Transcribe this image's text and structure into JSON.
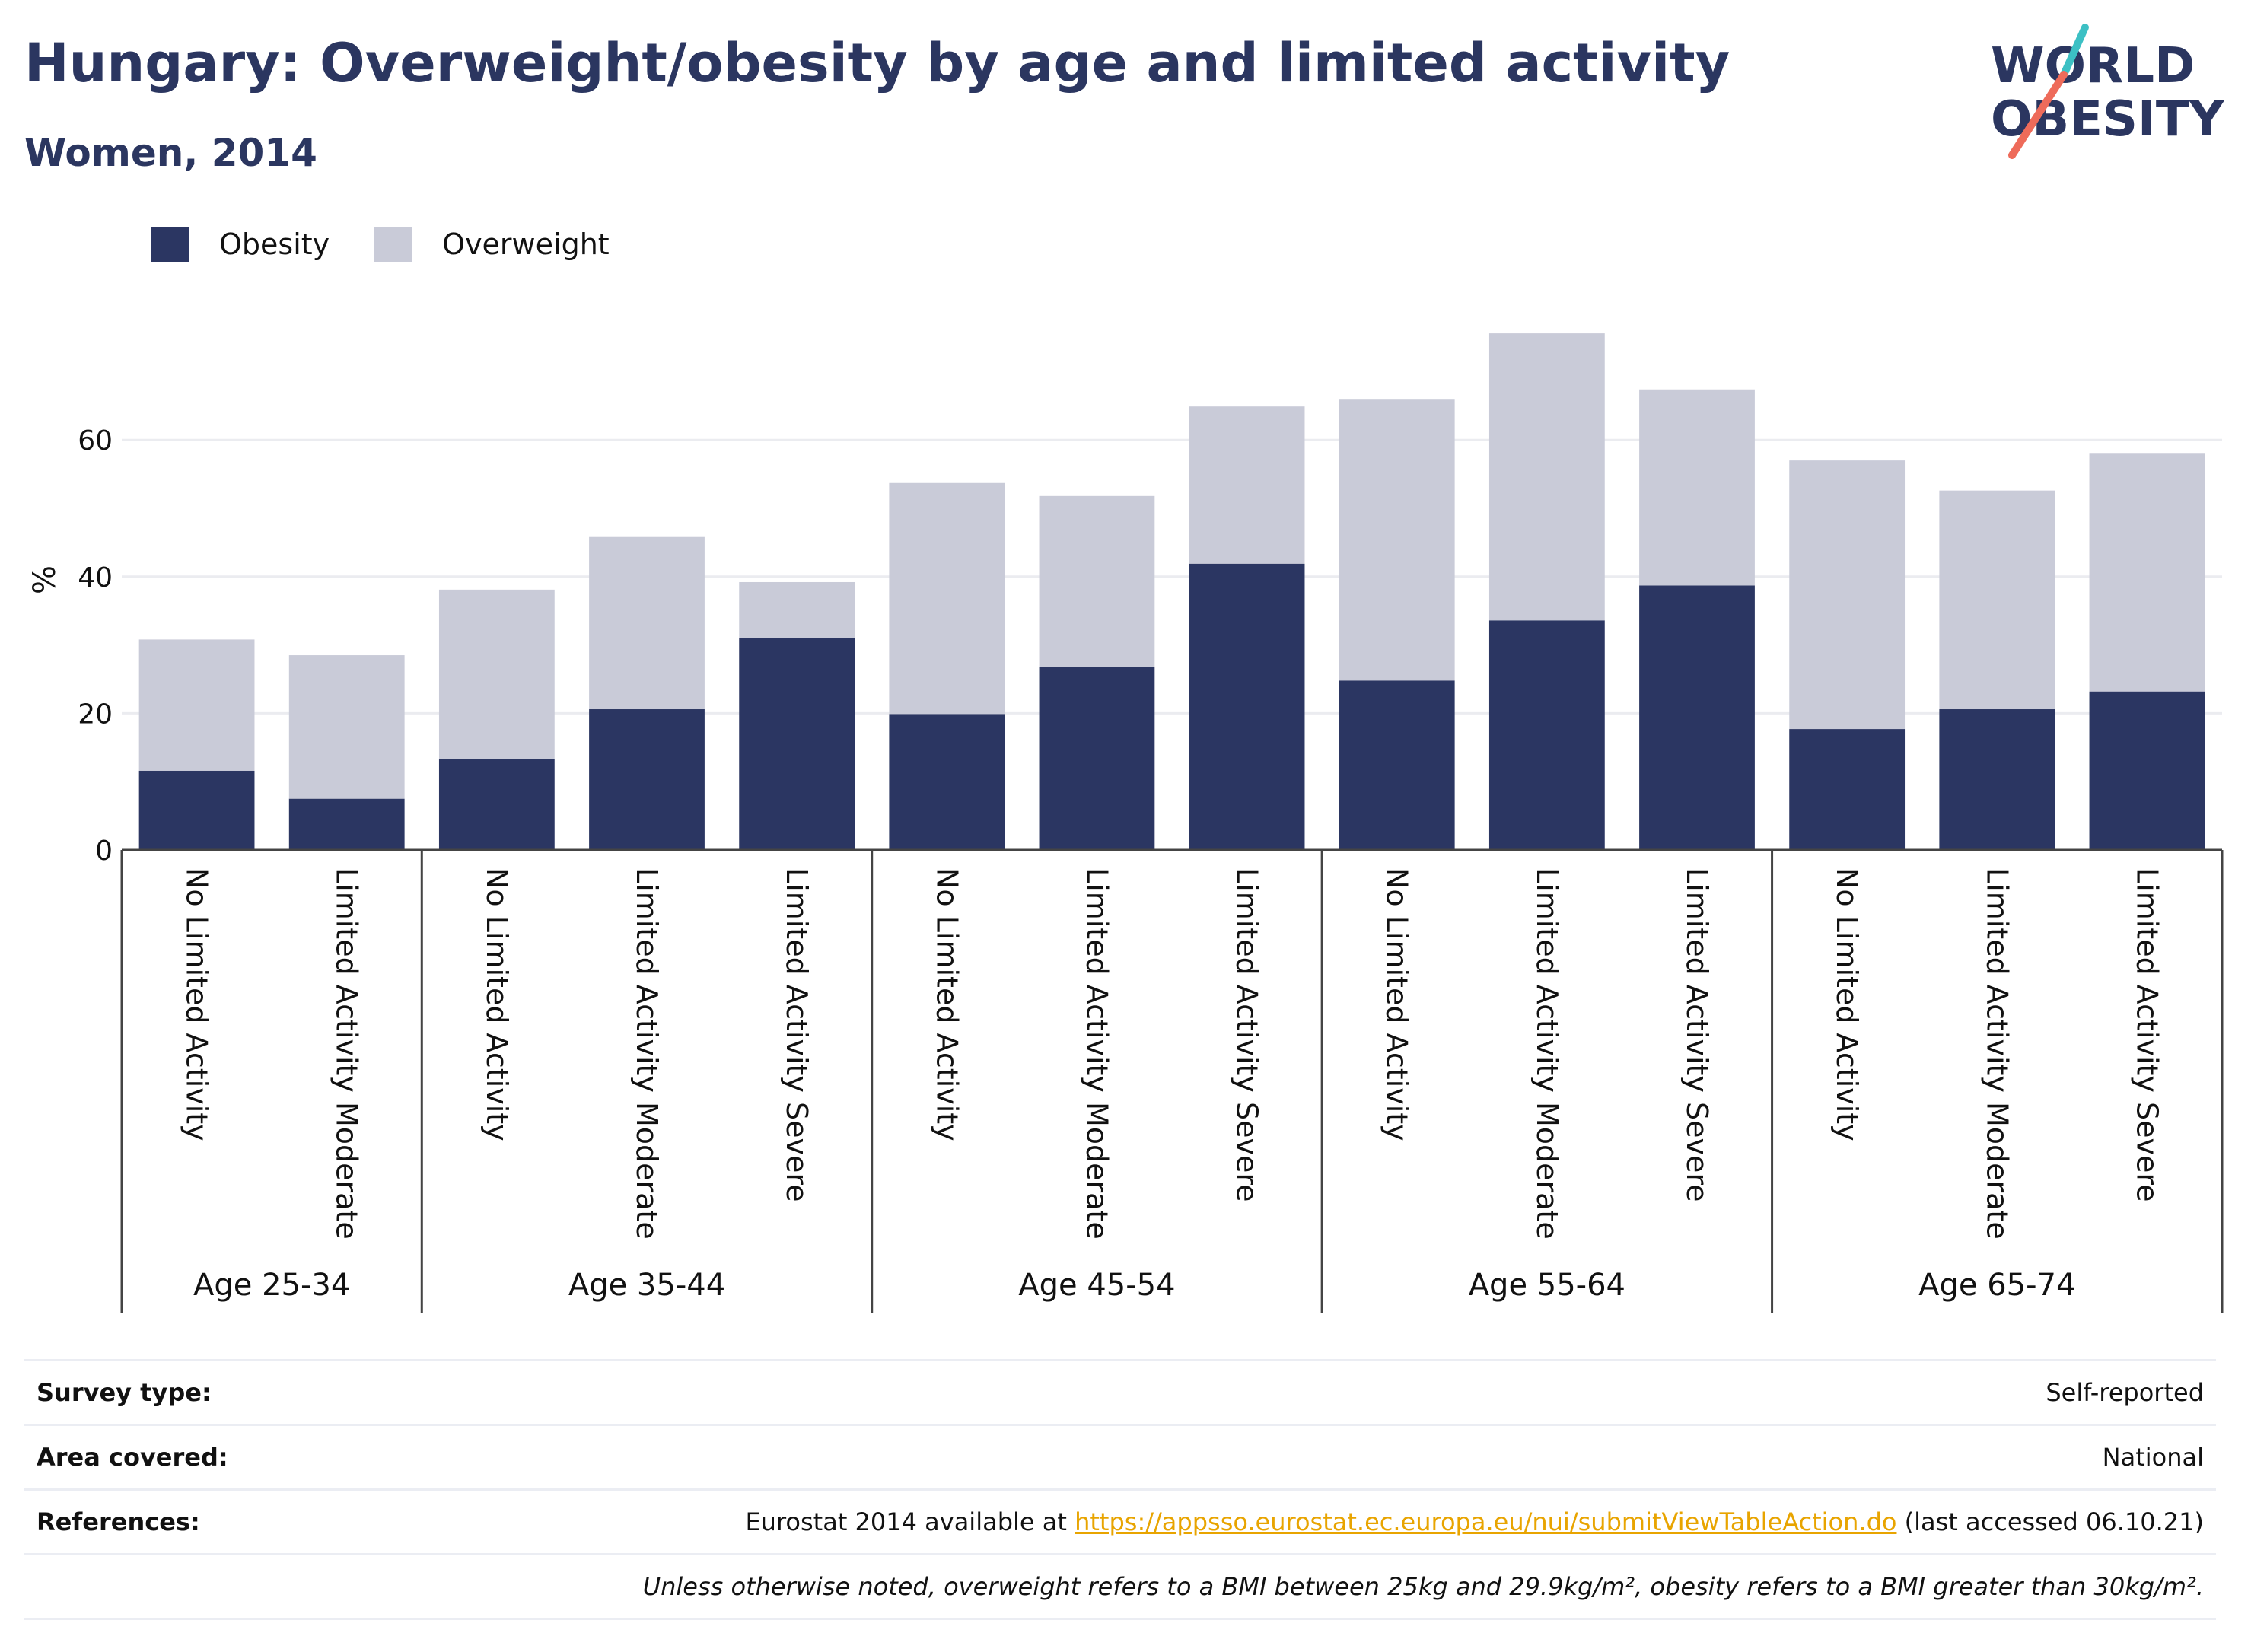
{
  "title": "Hungary: Overweight/obesity by age and limited activity",
  "subtitle": "Women, 2014",
  "logo": {
    "line1": "WORLD",
    "line2": "OBESITY"
  },
  "colors": {
    "obesity": "#2b3662",
    "overweight": "#c9cbd8",
    "brand": "#2b3660",
    "link": "#e8a400"
  },
  "legend": [
    {
      "label": "Obesity",
      "color": "#2b3662"
    },
    {
      "label": "Overweight",
      "color": "#c9cbd8"
    }
  ],
  "chart_data": {
    "type": "bar",
    "stacked": true,
    "ylabel": "%",
    "ylim": [
      0,
      80
    ],
    "yticks": [
      0,
      20,
      40,
      60
    ],
    "grid": true,
    "legend_position": "top-left",
    "groups": [
      {
        "label": "Age 25-34",
        "categories": [
          "No Limited Activity",
          "Limited Activity Moderate"
        ]
      },
      {
        "label": "Age 35-44",
        "categories": [
          "No Limited Activity",
          "Limited Activity Moderate",
          "Limited Activity Severe"
        ]
      },
      {
        "label": "Age 45-54",
        "categories": [
          "No Limited Activity",
          "Limited Activity Moderate",
          "Limited Activity Severe"
        ]
      },
      {
        "label": "Age 55-64",
        "categories": [
          "No Limited Activity",
          "Limited Activity Moderate",
          "Limited Activity Severe"
        ]
      },
      {
        "label": "Age 65-74",
        "categories": [
          "No Limited Activity",
          "Limited Activity Moderate",
          "Limited Activity Severe"
        ]
      }
    ],
    "series": [
      {
        "name": "Obesity",
        "values": [
          11.6,
          7.5,
          13.3,
          20.6,
          31.0,
          19.9,
          26.8,
          41.9,
          24.8,
          33.6,
          38.7,
          17.7,
          20.6,
          23.2
        ]
      },
      {
        "name": "Overweight",
        "values": [
          19.2,
          21.0,
          24.8,
          25.2,
          8.2,
          33.8,
          25.0,
          23.0,
          41.1,
          42.0,
          28.7,
          39.3,
          32.0,
          34.9
        ]
      }
    ]
  },
  "info": {
    "survey_type_label": "Survey type:",
    "survey_type_value": "Self-reported",
    "area_label": "Area covered:",
    "area_value": "National",
    "references_label": "References:",
    "references_prefix": "Eurostat 2014 available at",
    "references_link": "https://appsso.eurostat.ec.europa.eu/nui/submitViewTableAction.do",
    "references_suffix": "(last accessed 06.10.21)",
    "note": "Unless otherwise noted, overweight refers to a BMI between 25kg and 29.9kg/m², obesity refers to a BMI greater than 30kg/m²."
  }
}
